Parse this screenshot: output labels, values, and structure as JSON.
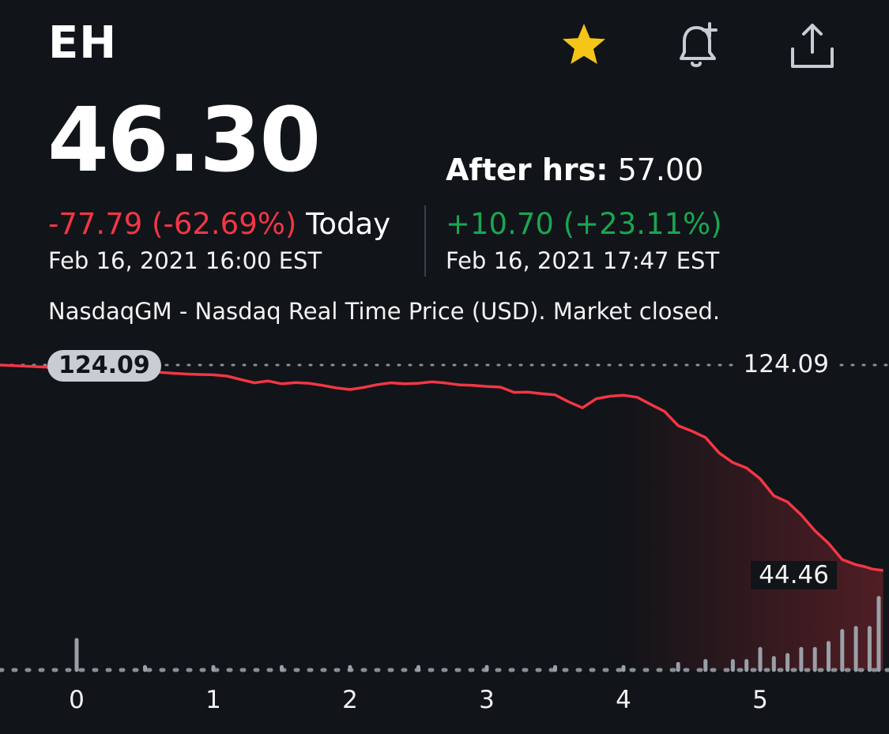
{
  "header": {
    "ticker": "EH",
    "icons": [
      "star-icon",
      "bell-plus-icon",
      "share-icon"
    ]
  },
  "quote": {
    "price": "46.30",
    "change": "-77.79 (-62.69%)",
    "change_label": "Today",
    "close_time": "Feb 16, 2021 16:00 EST",
    "after_hours_label": "After hrs:",
    "after_hours_price": "57.00",
    "after_hours_change": "+10.70 (+23.11%)",
    "after_hours_time": "Feb 16, 2021 17:47 EST",
    "market_note": "NasdaqGM - Nasdaq Real Time Price (USD). Market closed."
  },
  "colors": {
    "background": "#111418",
    "down": "#f23645",
    "up": "#19a552",
    "star": "#f5c518"
  },
  "chart_data": {
    "type": "line",
    "previous_close_badge": "124.09",
    "high_label": "124.09",
    "low_label": "44.46",
    "ylim": [
      44.46,
      124.09
    ],
    "x_ticks": [
      "0",
      "1",
      "2",
      "3",
      "4",
      "5"
    ],
    "series": [
      {
        "x": [
          0,
          0.1,
          0.2,
          0.3,
          0.4,
          0.5,
          0.6,
          0.7,
          0.8,
          0.9,
          1.0,
          1.1,
          1.2,
          1.3,
          1.4,
          1.5,
          1.6,
          1.7,
          1.8,
          1.9,
          2.0,
          2.1,
          2.2,
          2.3,
          2.4,
          2.5,
          2.6,
          2.7,
          2.8,
          2.9,
          3.0,
          3.1,
          3.2,
          3.3,
          3.4,
          3.5,
          3.6,
          3.7,
          3.8,
          3.9,
          4.0,
          4.1,
          4.2,
          4.3,
          4.4,
          4.5,
          4.6,
          4.7,
          4.8,
          4.9,
          5.0,
          5.1,
          5.2,
          5.3,
          5.4,
          5.5,
          5.6,
          5.7,
          5.76,
          5.82,
          5.9
        ],
        "y": [
          124.1,
          122.5,
          123.2,
          122.6,
          121.8,
          122.2,
          121.3,
          120.9,
          120.6,
          120.4,
          120.3,
          119.8,
          118.5,
          117.2,
          117.9,
          116.8,
          117.3,
          117.0,
          116.2,
          115.2,
          114.6,
          115.4,
          116.5,
          117.2,
          116.8,
          117.0,
          117.6,
          117.1,
          116.4,
          116.2,
          115.8,
          115.5,
          113.5,
          113.6,
          113.0,
          112.5,
          109.8,
          107.5,
          111.0,
          112.0,
          112.4,
          111.6,
          108.8,
          106.1,
          100.6,
          98.5,
          96.0,
          90.0,
          86.3,
          84.2,
          80.0,
          73.4,
          71.0,
          66.0,
          59.9,
          55.0,
          48.7,
          46.7,
          46.0,
          45.0,
          44.46
        ]
      }
    ],
    "volume": {
      "x": [
        0,
        0.5,
        1,
        1.5,
        2,
        2.5,
        3,
        3.5,
        4,
        4.4,
        4.6,
        4.8,
        4.9,
        5.0,
        5.1,
        5.2,
        5.3,
        5.4,
        5.5,
        5.6,
        5.7,
        5.8,
        5.9
      ],
      "values": [
        10,
        1,
        1,
        1,
        1,
        1,
        1,
        1,
        1,
        2,
        3,
        3,
        3,
        7,
        4,
        5,
        7,
        7,
        9,
        13,
        14,
        14,
        24
      ]
    }
  }
}
